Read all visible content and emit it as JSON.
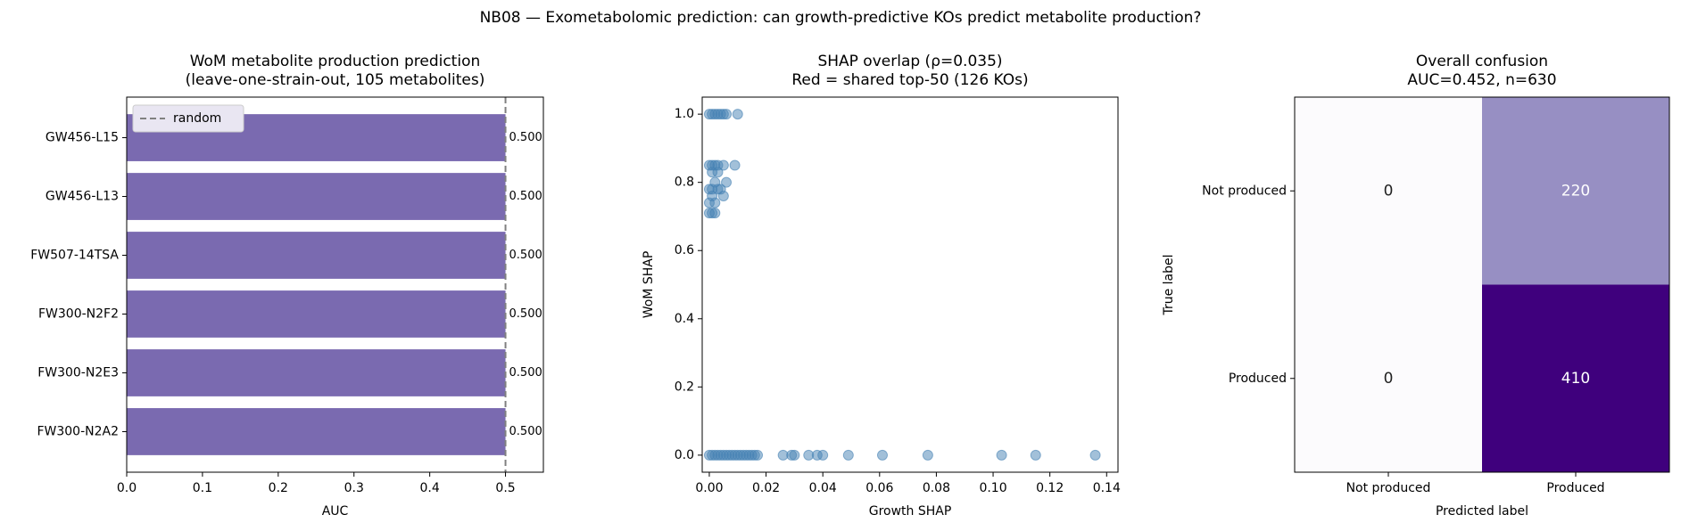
{
  "title": "NB08 — Exometabolomic prediction: can growth-predictive KOs predict metabolite production?",
  "chart_data": [
    {
      "type": "barh",
      "title": [
        "WoM metabolite production prediction",
        "(leave-one-strain-out, 105 metabolites)"
      ],
      "xlabel": "AUC",
      "categories": [
        "GW456-L15",
        "GW456-L13",
        "FW507-14TSA",
        "FW300-N2F2",
        "FW300-N2E3",
        "FW300-N2A2"
      ],
      "values": [
        0.5,
        0.5,
        0.5,
        0.5,
        0.5,
        0.5
      ],
      "value_labels": [
        "0.500",
        "0.500",
        "0.500",
        "0.500",
        "0.500",
        "0.500"
      ],
      "color": "#7a6ab0",
      "xlim": [
        0,
        0.55
      ],
      "xticks": [
        {
          "value": 0,
          "label": "0.0"
        },
        0.1,
        0.2,
        0.3,
        0.4,
        0.5
      ],
      "reference_line": {
        "value": 0.5,
        "name": "random",
        "color": "#808080"
      },
      "legend": "upper left"
    },
    {
      "type": "scatter",
      "title": [
        "SHAP overlap (ρ=0.035)",
        "Red = shared top-50 (126 KOs)"
      ],
      "xlabel": "Growth SHAP",
      "ylabel": "WoM SHAP",
      "color": "#4682b4",
      "x": [
        0,
        0.001,
        0.002,
        0.003,
        0.004,
        0.005,
        0.006,
        0.01,
        0,
        0.001,
        0.002,
        0.003,
        0.005,
        0.009,
        0.001,
        0.003,
        0.002,
        0.006,
        0,
        0.001,
        0.003,
        0.004,
        0.001,
        0.005,
        0,
        0.002,
        0,
        0.001,
        0.002,
        0,
        0.001,
        0.002,
        0.003,
        0.004,
        0.005,
        0.006,
        0.007,
        0.008,
        0.009,
        0.01,
        0.011,
        0.012,
        0.013,
        0.014,
        0.015,
        0.016,
        0.017,
        0.026,
        0.029,
        0.03,
        0.035,
        0.038,
        0.04,
        0.049,
        0.061,
        0.077,
        0.103,
        0.115,
        0.136
      ],
      "y": [
        1,
        1,
        1,
        1,
        1,
        1,
        1,
        1,
        0.85,
        0.85,
        0.85,
        0.85,
        0.85,
        0.85,
        0.83,
        0.83,
        0.8,
        0.8,
        0.78,
        0.78,
        0.78,
        0.78,
        0.76,
        0.76,
        0.74,
        0.74,
        0.71,
        0.71,
        0.71,
        0,
        0,
        0,
        0,
        0,
        0,
        0,
        0,
        0,
        0,
        0,
        0,
        0,
        0,
        0,
        0,
        0,
        0,
        0,
        0,
        0,
        0,
        0,
        0,
        0,
        0,
        0,
        0,
        0,
        0
      ],
      "xlim": [
        -0.0025,
        0.144
      ],
      "ylim": [
        -0.05,
        1.05
      ],
      "xticks": [
        {
          "value": 0,
          "label": "0.00"
        },
        0.02,
        0.04,
        0.06,
        0.08,
        {
          "value": 0.1,
          "label": "0.10"
        },
        0.12,
        0.14
      ],
      "yticks": [
        {
          "value": 0,
          "label": "0.0"
        },
        0.2,
        0.4,
        0.6,
        0.8,
        {
          "value": 1,
          "label": "1.0"
        }
      ]
    },
    {
      "type": "heatmap",
      "title": [
        "Overall confusion",
        "AUC=0.452, n=630"
      ],
      "xlabel": "Predicted label",
      "ylabel": "True label",
      "x_categories": [
        "Not produced",
        "Produced"
      ],
      "y_categories": [
        "Not produced",
        "Produced"
      ],
      "matrix": [
        [
          0,
          220
        ],
        [
          0,
          410
        ]
      ],
      "colormap": [
        "#fcfbfd",
        "#9e9ac8",
        "#3f007d"
      ]
    }
  ]
}
